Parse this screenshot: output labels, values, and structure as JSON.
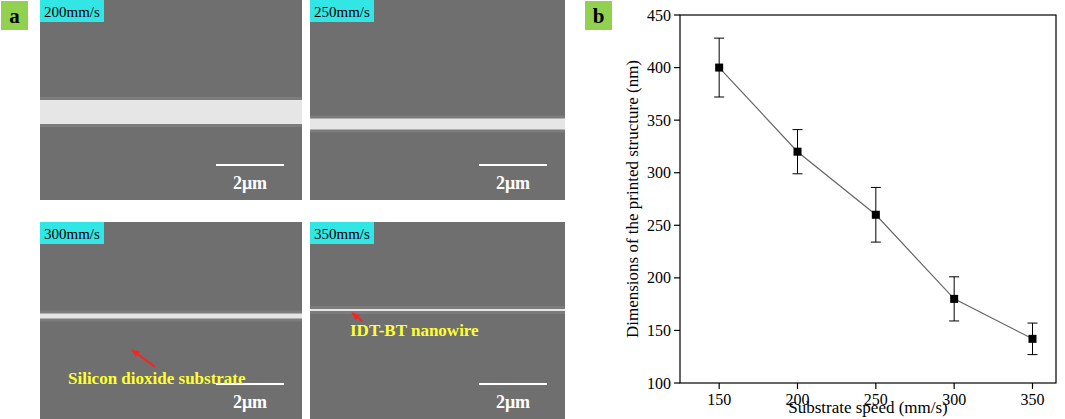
{
  "chart_data": {
    "type": "line",
    "panel_label": "b",
    "x_label": "Substrate speed (mm/s)",
    "y_label": "Dimensions of the printed structure (nm)",
    "x": [
      150,
      200,
      250,
      300,
      350
    ],
    "series": [
      {
        "name": "printed structure",
        "color": "#000000",
        "line_color": "#666666",
        "marker": "square",
        "line_style": "solid",
        "values": [
          400,
          320,
          260,
          180,
          142
        ],
        "errors": [
          28,
          21,
          26,
          21,
          15
        ]
      }
    ],
    "xlim": [
      125,
      365
    ],
    "xticks": [
      150,
      200,
      250,
      300,
      350
    ],
    "ylim": [
      100,
      450
    ],
    "yticks": [
      100,
      150,
      200,
      250,
      300,
      350,
      400,
      450
    ],
    "grid": false
  },
  "images": {
    "panel_label": "a",
    "tiles": [
      {
        "label": "200mm/s",
        "scale_bar": "2μm"
      },
      {
        "label": "250mm/s",
        "scale_bar": "2μm"
      },
      {
        "label": "300mm/s",
        "scale_bar": "2μm"
      },
      {
        "label": "350mm/s",
        "scale_bar": "2μm"
      }
    ],
    "annotations": [
      {
        "tile": 2,
        "text": "Silicon dioxide substrate"
      },
      {
        "tile": 3,
        "text": "IDT-BT nanowire"
      }
    ]
  }
}
